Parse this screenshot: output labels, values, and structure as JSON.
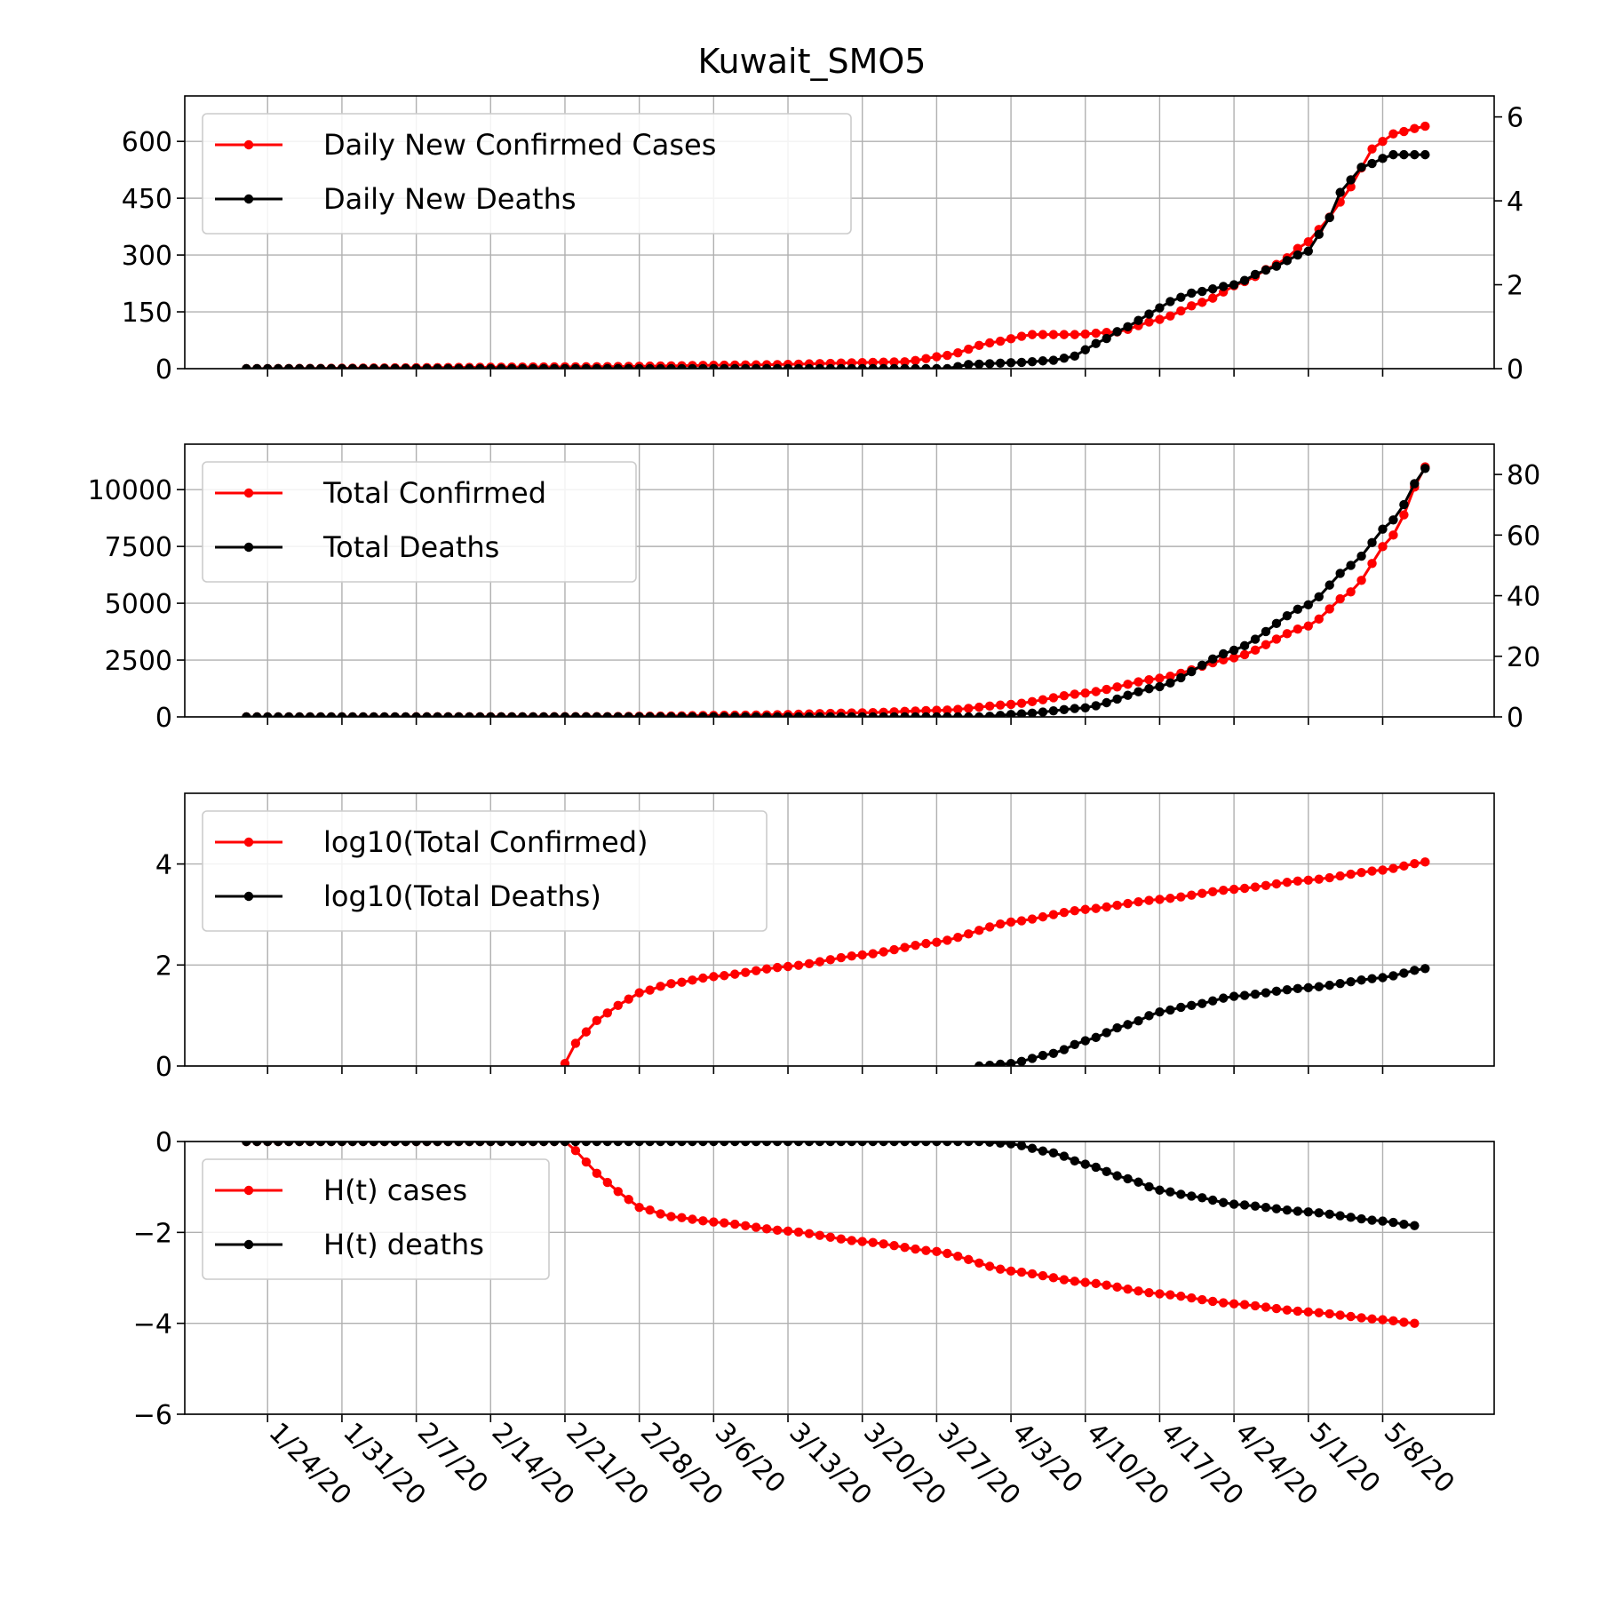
{
  "figure": {
    "title": "Kuwait_SMO5"
  },
  "chart_data": [
    {
      "type": "line",
      "panel": "daily",
      "x_start": "2020-01-22",
      "x_end": "2020-05-12",
      "x_tick_labels": [
        "1/24/20",
        "1/31/20",
        "2/7/20",
        "2/14/20",
        "2/21/20",
        "2/28/20",
        "3/6/20",
        "3/13/20",
        "3/20/20",
        "3/27/20",
        "4/3/20",
        "4/10/20",
        "4/17/20",
        "4/24/20",
        "5/1/20",
        "5/8/20"
      ],
      "x_tick_dates": [
        "2020-01-24",
        "2020-01-31",
        "2020-02-07",
        "2020-02-14",
        "2020-02-21",
        "2020-02-28",
        "2020-03-06",
        "2020-03-13",
        "2020-03-20",
        "2020-03-27",
        "2020-04-03",
        "2020-04-10",
        "2020-04-17",
        "2020-04-24",
        "2020-05-01",
        "2020-05-08"
      ],
      "ylim": [
        0,
        720
      ],
      "yticks": [
        0,
        150,
        300,
        450,
        600
      ],
      "y_tick_labels": [
        "0",
        "150",
        "300",
        "450",
        "600"
      ],
      "y2lim": [
        0,
        6.5
      ],
      "y2ticks": [
        0,
        2,
        4,
        6
      ],
      "y2_tick_labels": [
        "0",
        "2",
        "4",
        "6"
      ],
      "grid": true,
      "legend_position": "upper-left",
      "series": [
        {
          "name": "Daily New Confirmed Cases",
          "color": "#ff0000",
          "axis": "left",
          "keypoints": [
            [
              "2020-01-22",
              0
            ],
            [
              "2020-02-23",
              5
            ],
            [
              "2020-03-10",
              10
            ],
            [
              "2020-03-24",
              18
            ],
            [
              "2020-03-28",
              35
            ],
            [
              "2020-04-01",
              68
            ],
            [
              "2020-04-05",
              90
            ],
            [
              "2020-04-09",
              90
            ],
            [
              "2020-04-13",
              97
            ],
            [
              "2020-04-17",
              130
            ],
            [
              "2020-04-21",
              175
            ],
            [
              "2020-04-25",
              230
            ],
            [
              "2020-04-28",
              275
            ],
            [
              "2020-05-01",
              335
            ],
            [
              "2020-05-03",
              400
            ],
            [
              "2020-05-05",
              480
            ],
            [
              "2020-05-07",
              580
            ],
            [
              "2020-05-09",
              620
            ],
            [
              "2020-05-12",
              640
            ]
          ]
        },
        {
          "name": "Daily New Deaths",
          "color": "#000000",
          "axis": "right",
          "keypoints": [
            [
              "2020-01-22",
              0
            ],
            [
              "2020-03-28",
              0
            ],
            [
              "2020-03-30",
              0.1
            ],
            [
              "2020-04-04",
              0.15
            ],
            [
              "2020-04-07",
              0.2
            ],
            [
              "2020-04-09",
              0.3
            ],
            [
              "2020-04-11",
              0.6
            ],
            [
              "2020-04-14",
              1.0
            ],
            [
              "2020-04-16",
              1.3
            ],
            [
              "2020-04-18",
              1.6
            ],
            [
              "2020-04-20",
              1.8
            ],
            [
              "2020-04-24",
              2.0
            ],
            [
              "2020-04-27",
              2.35
            ],
            [
              "2020-05-01",
              2.8
            ],
            [
              "2020-05-02",
              3.2
            ],
            [
              "2020-05-03",
              3.6
            ],
            [
              "2020-05-04",
              4.2
            ],
            [
              "2020-05-06",
              4.8
            ],
            [
              "2020-05-09",
              5.1
            ],
            [
              "2020-05-12",
              5.1
            ]
          ]
        }
      ]
    },
    {
      "type": "line",
      "panel": "totals",
      "x_start": "2020-01-22",
      "x_end": "2020-05-12",
      "ylim": [
        0,
        12000
      ],
      "yticks": [
        0,
        2500,
        5000,
        7500,
        10000
      ],
      "y_tick_labels": [
        "0",
        "2500",
        "5000",
        "7500",
        "10000"
      ],
      "y2lim": [
        0,
        90
      ],
      "y2ticks": [
        0,
        20,
        40,
        60,
        80
      ],
      "y2_tick_labels": [
        "0",
        "20",
        "40",
        "60",
        "80"
      ],
      "grid": true,
      "legend_position": "upper-left",
      "series": [
        {
          "name": "Total Confirmed",
          "color": "#ff0000",
          "axis": "left",
          "keypoints": [
            [
              "2020-01-22",
              0
            ],
            [
              "2020-02-24",
              10
            ],
            [
              "2020-03-10",
              80
            ],
            [
              "2020-03-20",
              180
            ],
            [
              "2020-03-28",
              300
            ],
            [
              "2020-04-03",
              550
            ],
            [
              "2020-04-10",
              1050
            ],
            [
              "2020-04-17",
              1700
            ],
            [
              "2020-04-24",
              2600
            ],
            [
              "2020-05-01",
              4000
            ],
            [
              "2020-05-05",
              5500
            ],
            [
              "2020-05-09",
              8000
            ],
            [
              "2020-05-12",
              11000
            ]
          ]
        },
        {
          "name": "Total Deaths",
          "color": "#000000",
          "axis": "right",
          "keypoints": [
            [
              "2020-01-22",
              0
            ],
            [
              "2020-03-31",
              0
            ],
            [
              "2020-04-04",
              1
            ],
            [
              "2020-04-10",
              3
            ],
            [
              "2020-04-17",
              10
            ],
            [
              "2020-04-24",
              22
            ],
            [
              "2020-05-01",
              37
            ],
            [
              "2020-05-05",
              50
            ],
            [
              "2020-05-09",
              65
            ],
            [
              "2020-05-12",
              82
            ]
          ]
        }
      ]
    },
    {
      "type": "line",
      "panel": "log10",
      "x_start": "2020-01-22",
      "x_end": "2020-05-12",
      "ylim": [
        0,
        5.4
      ],
      "yticks": [
        0,
        2,
        4
      ],
      "y_tick_labels": [
        "0",
        "2",
        "4"
      ],
      "grid": true,
      "legend_position": "upper-left",
      "series": [
        {
          "name": "log10(Total Confirmed)",
          "color": "#ff0000",
          "keypoints": [
            [
              "2020-02-21",
              0.05
            ],
            [
              "2020-02-22",
              0.45
            ],
            [
              "2020-02-24",
              0.9
            ],
            [
              "2020-02-26",
              1.2
            ],
            [
              "2020-02-28",
              1.45
            ],
            [
              "2020-03-02",
              1.63
            ],
            [
              "2020-03-06",
              1.77
            ],
            [
              "2020-03-13",
              1.97
            ],
            [
              "2020-03-20",
              2.2
            ],
            [
              "2020-03-27",
              2.45
            ],
            [
              "2020-04-03",
              2.85
            ],
            [
              "2020-04-10",
              3.1
            ],
            [
              "2020-04-17",
              3.3
            ],
            [
              "2020-04-24",
              3.5
            ],
            [
              "2020-05-01",
              3.68
            ],
            [
              "2020-05-08",
              3.88
            ],
            [
              "2020-05-12",
              4.04
            ]
          ]
        },
        {
          "name": "log10(Total Deaths)",
          "color": "#000000",
          "keypoints": [
            [
              "2020-03-31",
              0
            ],
            [
              "2020-04-03",
              0.05
            ],
            [
              "2020-04-07",
              0.25
            ],
            [
              "2020-04-10",
              0.5
            ],
            [
              "2020-04-14",
              0.82
            ],
            [
              "2020-04-17",
              1.07
            ],
            [
              "2020-04-20",
              1.2
            ],
            [
              "2020-04-24",
              1.38
            ],
            [
              "2020-05-01",
              1.55
            ],
            [
              "2020-05-08",
              1.75
            ],
            [
              "2020-05-12",
              1.93
            ]
          ]
        }
      ]
    },
    {
      "type": "line",
      "panel": "entropy",
      "x_start": "2020-01-22",
      "x_end": "2020-05-12",
      "ylim": [
        -6,
        0
      ],
      "yticks": [
        0,
        -2,
        -4,
        -6
      ],
      "y_tick_labels": [
        "0",
        "−2",
        "−4",
        "−6"
      ],
      "grid": true,
      "legend_position": "upper-left",
      "series": [
        {
          "name": "H(t) cases",
          "color": "#ff0000",
          "keypoints": [
            [
              "2020-01-22",
              0
            ],
            [
              "2020-02-21",
              0
            ],
            [
              "2020-02-22",
              -0.2
            ],
            [
              "2020-02-24",
              -0.7
            ],
            [
              "2020-02-26",
              -1.1
            ],
            [
              "2020-02-28",
              -1.45
            ],
            [
              "2020-03-02",
              -1.65
            ],
            [
              "2020-03-06",
              -1.77
            ],
            [
              "2020-03-13",
              -1.97
            ],
            [
              "2020-03-20",
              -2.2
            ],
            [
              "2020-03-27",
              -2.42
            ],
            [
              "2020-04-03",
              -2.85
            ],
            [
              "2020-04-10",
              -3.1
            ],
            [
              "2020-04-17",
              -3.35
            ],
            [
              "2020-04-24",
              -3.57
            ],
            [
              "2020-05-01",
              -3.75
            ],
            [
              "2020-05-08",
              -3.92
            ],
            [
              "2020-05-11",
              -4.0
            ]
          ]
        },
        {
          "name": "H(t) deaths",
          "color": "#000000",
          "keypoints": [
            [
              "2020-01-22",
              0
            ],
            [
              "2020-03-23",
              0
            ],
            [
              "2020-03-31",
              0
            ],
            [
              "2020-04-03",
              -0.05
            ],
            [
              "2020-04-07",
              -0.25
            ],
            [
              "2020-04-10",
              -0.5
            ],
            [
              "2020-04-14",
              -0.82
            ],
            [
              "2020-04-17",
              -1.07
            ],
            [
              "2020-04-20",
              -1.2
            ],
            [
              "2020-04-24",
              -1.38
            ],
            [
              "2020-05-01",
              -1.55
            ],
            [
              "2020-05-08",
              -1.75
            ],
            [
              "2020-05-11",
              -1.85
            ]
          ]
        }
      ]
    }
  ]
}
